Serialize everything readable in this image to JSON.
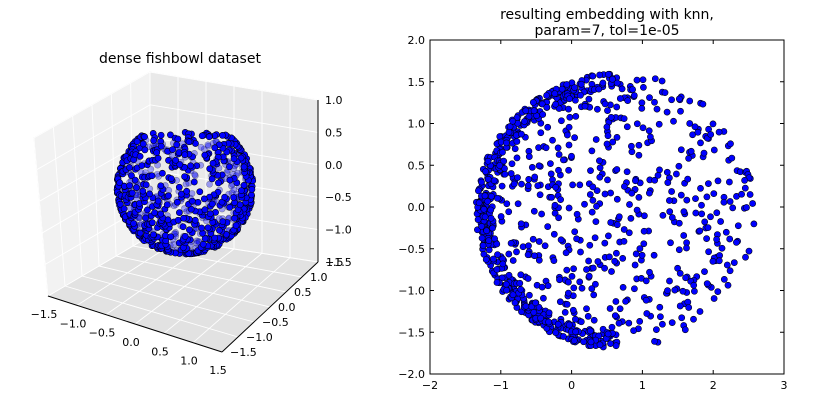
{
  "chart_data": [
    {
      "type": "scatter",
      "projection": "3d",
      "title": "dense fishbowl dataset",
      "x_ticks": [
        "−1.5",
        "−1.0",
        "−0.5",
        "0.0",
        "0.5",
        "1.0",
        "1.5"
      ],
      "y_ticks": [
        "−1.5",
        "−1.0",
        "−0.5",
        "0.0",
        "0.5",
        "1.0",
        "1.5"
      ],
      "z_ticks": [
        "−1.5",
        "−1.0",
        "−0.5",
        "0.0",
        "0.5",
        "1.0"
      ],
      "xlim": [
        -1.5,
        1.5
      ],
      "ylim": [
        -1.5,
        1.5
      ],
      "zlim": [
        -1.5,
        1.0
      ],
      "shape": "unit sphere with top cap removed (fishbowl)",
      "radius": 1.0,
      "z_cut": 0.75,
      "point_count": 1000,
      "marker_color": "#0000ff",
      "grid": true
    },
    {
      "type": "scatter",
      "title": "resulting embedding with knn,\nparam=7, tol=1e-05",
      "title_lines": [
        "resulting embedding with knn,",
        "param=7, tol=1e-05"
      ],
      "x_ticks": [
        "−2",
        "−1",
        "0",
        "1",
        "2",
        "3"
      ],
      "y_ticks": [
        "−2.0",
        "−1.5",
        "−1.0",
        "−0.5",
        "0.0",
        "0.5",
        "1.0",
        "1.5",
        "2.0"
      ],
      "xlim": [
        -2,
        3
      ],
      "ylim": [
        -2,
        2
      ],
      "shape": "disc with dense crescent on left edge",
      "center": [
        0.6,
        0.0
      ],
      "extent_x": [
        -1.4,
        2.65
      ],
      "extent_y": [
        -1.7,
        1.6
      ],
      "point_count": 1000,
      "marker_color": "#0000ff",
      "grid": false
    }
  ]
}
